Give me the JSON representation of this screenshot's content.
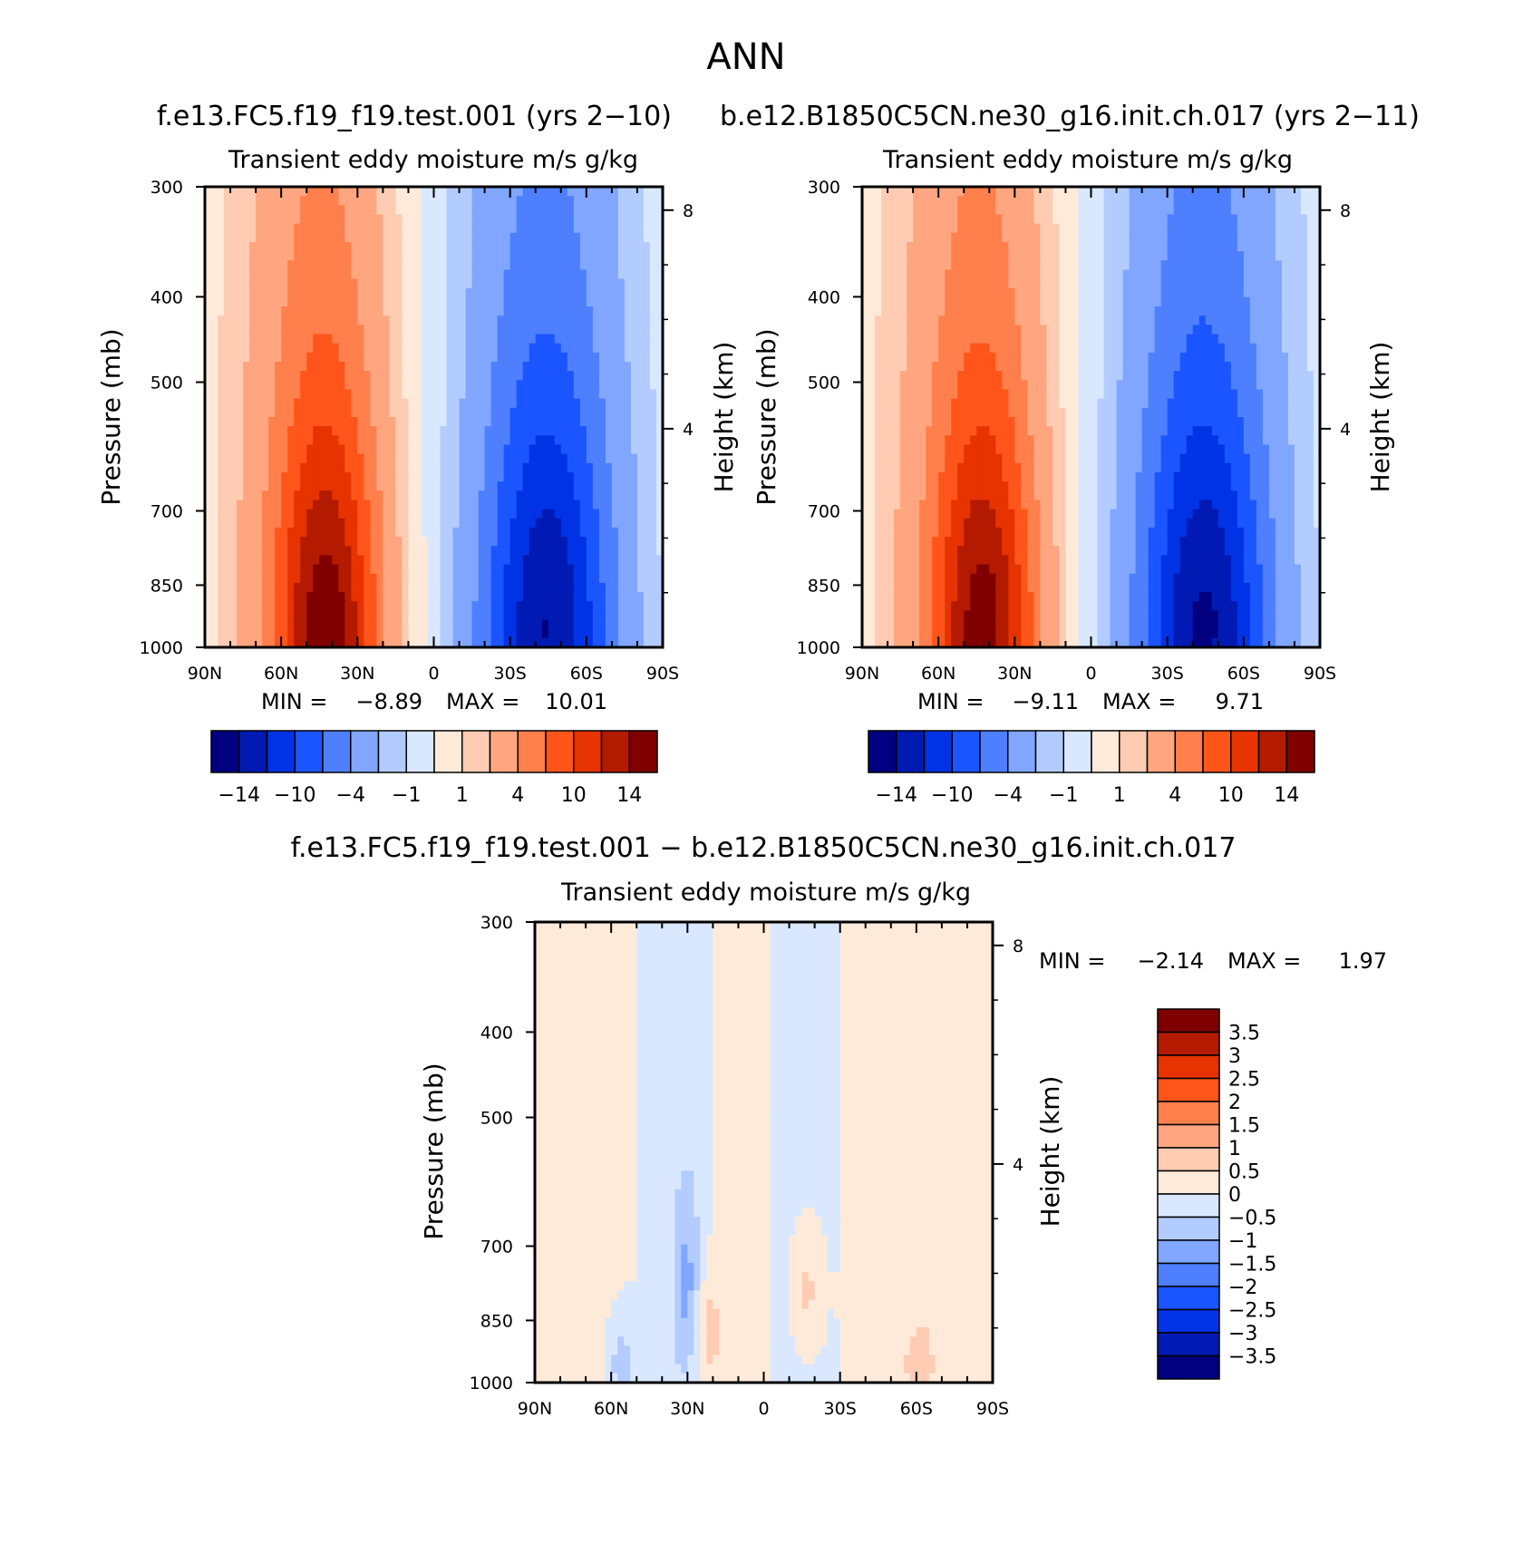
{
  "figure": {
    "title": "ANN",
    "test_case": "f.e13.FC5.f19_f19.test.001 (yrs 2−10)",
    "control_case": "b.e12.B1850C5CN.ne30_g16.init.ch.017 (yrs 2−11)",
    "diff_title": "f.e13.FC5.f19_f19.test.001 − b.e12.B1850C5CN.ne30_g16.init.ch.017",
    "colors": {
      "main": [
        "#000080",
        "#001AB3",
        "#0033E6",
        "#1A55FF",
        "#4D7FFF",
        "#80A6FF",
        "#B3CCFF",
        "#D9E8FF",
        "#FFEAD9",
        "#FFCCB3",
        "#FFA680",
        "#FF7F4D",
        "#FF551A",
        "#E63300",
        "#B31A00",
        "#800000"
      ],
      "diff": [
        "#000080",
        "#001AB3",
        "#0033E6",
        "#1A55FF",
        "#4D7FFF",
        "#80A6FF",
        "#B3CCFF",
        "#D9E8FF",
        "#FFEAD9",
        "#FFCCB3",
        "#FFA680",
        "#FF7F4D",
        "#FF551A",
        "#E63300",
        "#B31A00",
        "#800000"
      ]
    }
  },
  "chart_data": [
    {
      "type": "heatmap",
      "title": "Transient eddy moisture m/s g/kg",
      "case": "f.e13.FC5.f19_f19.test.001 (yrs 2−10)",
      "ylabel": "Pressure (mb)",
      "ylabel_right": "Height (km)",
      "x_ticks": [
        "90N",
        "60N",
        "30N",
        "0",
        "30S",
        "60S",
        "90S"
      ],
      "y_ticks": [
        "300",
        "400",
        "500",
        "700",
        "850",
        "1000"
      ],
      "y_right_ticks": [
        "8",
        "4"
      ],
      "xlim": [
        90,
        -90
      ],
      "ylim": [
        1000,
        300
      ],
      "y_scale": "log",
      "min_label": "MIN =",
      "min_value": "−8.89",
      "max_label": "MAX =",
      "max_value": "10.01",
      "min": -8.89,
      "max": 10.01,
      "colorbar_labels": [
        "−14",
        "−10",
        "−4",
        "−1",
        "1",
        "4",
        "10",
        "14"
      ],
      "colorbar_levels": [
        -14,
        -12,
        -10,
        -8,
        -6,
        -4,
        -2,
        -1,
        0,
        1,
        2,
        4,
        6,
        8,
        10,
        12,
        14
      ],
      "features": [
        {
          "lat": 42,
          "p": 960,
          "peak": 10.0,
          "sx": 14,
          "sy": 330
        },
        {
          "lat": 47,
          "p": 820,
          "peak": 3.5,
          "sx": 24,
          "sy": 850
        },
        {
          "lat": -45,
          "p": 960,
          "peak": -8.9,
          "sx": 17,
          "sy": 360
        },
        {
          "lat": -42,
          "p": 820,
          "peak": -3.2,
          "sx": 27,
          "sy": 900
        }
      ]
    },
    {
      "type": "heatmap",
      "title": "Transient eddy moisture m/s g/kg",
      "case": "b.e12.B1850C5CN.ne30_g16.init.ch.017 (yrs 2−11)",
      "ylabel": "Pressure (mb)",
      "ylabel_right": "Height (km)",
      "x_ticks": [
        "90N",
        "60N",
        "30N",
        "0",
        "30S",
        "60S",
        "90S"
      ],
      "y_ticks": [
        "300",
        "400",
        "500",
        "700",
        "850",
        "1000"
      ],
      "y_right_ticks": [
        "8",
        "4"
      ],
      "xlim": [
        90,
        -90
      ],
      "ylim": [
        1000,
        300
      ],
      "y_scale": "log",
      "min_label": "MIN =",
      "min_value": "−9.11",
      "max_label": "MAX =",
      "max_value": "9.71",
      "min": -9.11,
      "max": 9.71,
      "colorbar_labels": [
        "−14",
        "−10",
        "−4",
        "−1",
        "1",
        "4",
        "10",
        "14"
      ],
      "colorbar_levels": [
        -14,
        -12,
        -10,
        -8,
        -6,
        -4,
        -2,
        -1,
        0,
        1,
        2,
        4,
        6,
        8,
        10,
        12,
        14
      ],
      "features": [
        {
          "lat": 42,
          "p": 960,
          "peak": 9.7,
          "sx": 14,
          "sy": 330
        },
        {
          "lat": 47,
          "p": 820,
          "peak": 3.5,
          "sx": 24,
          "sy": 850
        },
        {
          "lat": -45,
          "p": 960,
          "peak": -9.1,
          "sx": 17,
          "sy": 360
        },
        {
          "lat": -42,
          "p": 820,
          "peak": -3.3,
          "sx": 27,
          "sy": 900
        }
      ]
    },
    {
      "type": "heatmap",
      "title": "Transient eddy moisture m/s g/kg",
      "case": "f.e13.FC5.f19_f19.test.001 − b.e12.B1850C5CN.ne30_g16.init.ch.017",
      "ylabel": "Pressure (mb)",
      "ylabel_right": "Height (km)",
      "x_ticks": [
        "90N",
        "60N",
        "30N",
        "0",
        "30S",
        "60S",
        "90S"
      ],
      "y_ticks": [
        "300",
        "400",
        "500",
        "700",
        "850",
        "1000"
      ],
      "y_right_ticks": [
        "8",
        "4"
      ],
      "xlim": [
        90,
        -90
      ],
      "ylim": [
        1000,
        300
      ],
      "y_scale": "log",
      "min_label": "MIN =",
      "min_value": "−2.14",
      "max_label": "MAX =",
      "max_value": "1.97",
      "min": -2.14,
      "max": 1.97,
      "colorbar_labels": [
        "3.5",
        "3",
        "2.5",
        "2",
        "1.5",
        "1",
        "0.5",
        "0",
        "−0.5",
        "−1",
        "−1.5",
        "−2",
        "−2.5",
        "−3",
        "−3.5"
      ],
      "colorbar_levels": [
        -4,
        -3.5,
        -3,
        -2.5,
        -2,
        -1.5,
        -1,
        -0.5,
        0,
        0.5,
        1,
        1.5,
        2,
        2.5,
        3,
        3.5,
        4
      ],
      "features": [
        {
          "lat": 68,
          "p": 650,
          "peak": 0.15,
          "sx": 12,
          "sy": 2000
        },
        {
          "lat": 33,
          "p": 650,
          "peak": -0.2,
          "sx": 9,
          "sy": 2000
        },
        {
          "lat": 10,
          "p": 650,
          "peak": 0.18,
          "sx": 9,
          "sy": 2000
        },
        {
          "lat": -15,
          "p": 650,
          "peak": -0.15,
          "sx": 12,
          "sy": 2000
        },
        {
          "lat": -50,
          "p": 650,
          "peak": 0.22,
          "sx": 14,
          "sy": 2000
        },
        {
          "lat": 30,
          "p": 780,
          "peak": -1.0,
          "sx": 4,
          "sy": 140
        },
        {
          "lat": 22,
          "p": 880,
          "peak": 0.8,
          "sx": 4,
          "sy": 90
        },
        {
          "lat": -17,
          "p": 790,
          "peak": 0.7,
          "sx": 4,
          "sy": 90
        },
        {
          "lat": 56,
          "p": 950,
          "peak": -0.8,
          "sx": 4,
          "sy": 80
        },
        {
          "lat": -62,
          "p": 950,
          "peak": 0.6,
          "sx": 5,
          "sy": 80
        }
      ]
    }
  ]
}
